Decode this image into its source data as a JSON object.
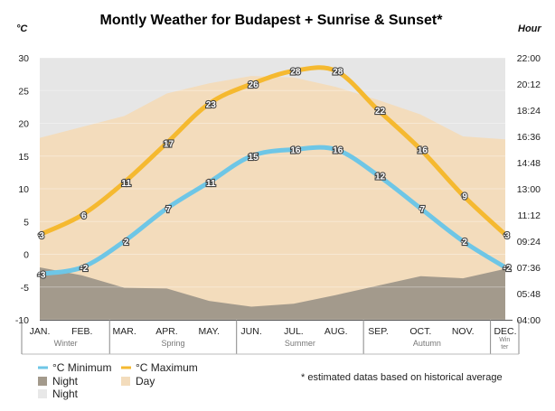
{
  "chart_data": {
    "type": "line",
    "title": "Montly Weather for Budapest + Sunrise & Sunset*",
    "ylabel_left": "°C",
    "ylabel_right": "Hour",
    "ylim": [
      -10,
      30
    ],
    "yticks_left": [
      "-10",
      "-5",
      "0",
      "5",
      "10",
      "15",
      "20",
      "25",
      "30"
    ],
    "yticks_right": [
      "04:00",
      "05:48",
      "07:36",
      "09:24",
      "11:12",
      "13:00",
      "14:48",
      "16:36",
      "18:24",
      "20:12",
      "22:00"
    ],
    "categories": [
      "JAN.",
      "FEB.",
      "MAR.",
      "APR.",
      "MAY.",
      "JUN.",
      "JUL.",
      "AUG.",
      "SEP.",
      "OCT.",
      "NOV.",
      "DEC."
    ],
    "seasons": [
      {
        "name": "Winter",
        "start": 0,
        "end": 1.65
      },
      {
        "name": "Spring",
        "start": 1.65,
        "end": 4.65
      },
      {
        "name": "Summer",
        "start": 4.65,
        "end": 7.65
      },
      {
        "name": "Autumn",
        "start": 7.65,
        "end": 10.65
      },
      {
        "name": "Win ter",
        "start": 10.65,
        "end": 11
      }
    ],
    "series": [
      {
        "name": "°C Minimum",
        "color": "#6ec6e6",
        "values": [
          -3,
          -2,
          2,
          7,
          11,
          15,
          16,
          16,
          12,
          7,
          2,
          -2
        ],
        "labels": [
          "-3",
          "-2",
          "2",
          "7",
          "11",
          "15",
          "16",
          "16",
          "12",
          "7",
          "2",
          "-2"
        ]
      },
      {
        "name": "°C Maximum",
        "color": "#f5b930",
        "values": [
          3,
          6,
          11,
          17,
          23,
          26,
          28,
          28,
          22,
          16,
          9,
          3
        ],
        "labels": [
          "3",
          "6",
          "11",
          "17",
          "23",
          "26",
          "28",
          "28",
          "22",
          "16",
          "9",
          "3"
        ]
      }
    ],
    "sunrise_hours": [
      7.6,
      7.05,
      6.2,
      6.15,
      5.3,
      4.9,
      5.1,
      5.7,
      6.35,
      7.0,
      6.85,
      7.5
    ],
    "sunset_hours": [
      16.5,
      17.25,
      18.0,
      19.55,
      20.25,
      20.75,
      20.65,
      20.0,
      19.1,
      18.1,
      16.6,
      16.4
    ],
    "legend": [
      {
        "label": "°C Minimum",
        "kind": "line",
        "color": "#6ec6e6"
      },
      {
        "label": "°C Maximum",
        "kind": "line",
        "color": "#f5b930"
      },
      {
        "label": "Night",
        "kind": "box",
        "color": "#a39a8c"
      },
      {
        "label": "Day",
        "kind": "box",
        "color": "#f3dcbc"
      },
      {
        "label": "Night",
        "kind": "box",
        "color": "#e8e8e8"
      }
    ],
    "colors": {
      "night_top": "#e6e6e6",
      "day": "#f3dcbc",
      "night_bottom": "#a39a8c"
    },
    "note": "* estimated datas based on historical average"
  }
}
